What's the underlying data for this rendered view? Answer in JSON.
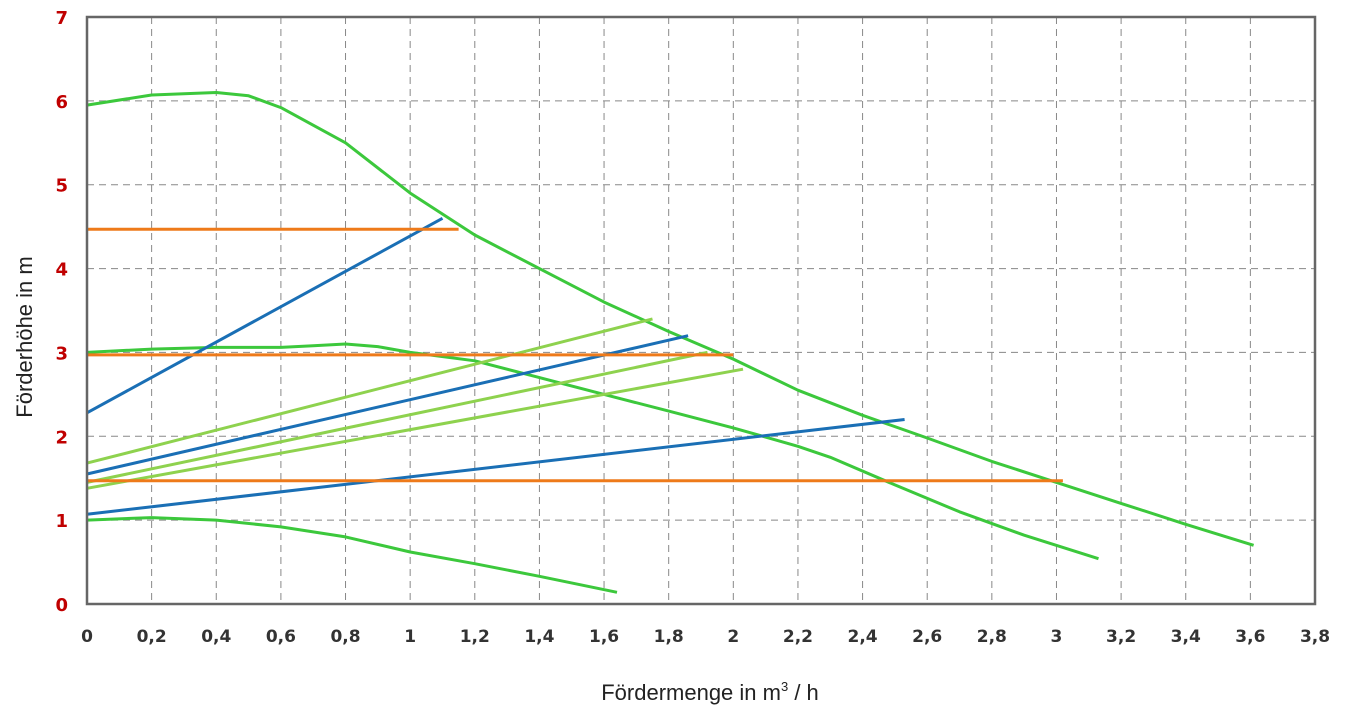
{
  "chart_data": {
    "type": "line",
    "title": "",
    "xlabel_main": "Fördermenge in m",
    "xlabel_sup": "3",
    "xlabel_tail": " / h",
    "ylabel": "Förderhöhe in m",
    "xlim": [
      0,
      3.8
    ],
    "ylim": [
      0,
      7
    ],
    "grid": true,
    "x_ticks": [
      {
        "value": 0,
        "label": "0"
      },
      {
        "value": 0.2,
        "label": "0,2"
      },
      {
        "value": 0.4,
        "label": "0,4"
      },
      {
        "value": 0.6,
        "label": "0,6"
      },
      {
        "value": 0.8,
        "label": "0,8"
      },
      {
        "value": 1,
        "label": "1"
      },
      {
        "value": 1.2,
        "label": "1,2"
      },
      {
        "value": 1.4,
        "label": "1,4"
      },
      {
        "value": 1.6,
        "label": "1,6"
      },
      {
        "value": 1.8,
        "label": "1,8"
      },
      {
        "value": 2,
        "label": "2"
      },
      {
        "value": 2.2,
        "label": "2,2"
      },
      {
        "value": 2.4,
        "label": "2,4"
      },
      {
        "value": 2.6,
        "label": "2,6"
      },
      {
        "value": 2.8,
        "label": "2,8"
      },
      {
        "value": 3,
        "label": "3"
      },
      {
        "value": 3.2,
        "label": "3,2"
      },
      {
        "value": 3.4,
        "label": "3,4"
      },
      {
        "value": 3.6,
        "label": "3,6"
      },
      {
        "value": 3.8,
        "label": "3,8"
      }
    ],
    "y_ticks": [
      {
        "value": 0,
        "label": "0"
      },
      {
        "value": 1,
        "label": "1"
      },
      {
        "value": 2,
        "label": "2"
      },
      {
        "value": 3,
        "label": "3"
      },
      {
        "value": 4,
        "label": "4"
      },
      {
        "value": 5,
        "label": "5"
      },
      {
        "value": 6,
        "label": "6"
      },
      {
        "value": 7,
        "label": "7"
      }
    ],
    "colors": {
      "pump_curve": "#3cc83c",
      "linear_green": "#8ed24e",
      "linear_blue": "#1a6fb5",
      "constant_orange": "#ee7a1a",
      "ytick": "#c00000",
      "xtick": "#333333",
      "frame": "#666666",
      "grid": "#888888"
    },
    "series": [
      {
        "group": "pump_curve",
        "x": [
          0,
          0.2,
          0.4,
          0.5,
          0.6,
          0.8,
          1.0,
          1.2,
          1.4,
          1.6,
          1.8,
          2.0,
          2.2,
          2.4,
          2.6,
          2.8,
          3.0,
          3.2,
          3.4,
          3.61
        ],
        "y": [
          5.95,
          6.07,
          6.1,
          6.06,
          5.92,
          5.5,
          4.9,
          4.4,
          4.0,
          3.6,
          3.25,
          2.92,
          2.55,
          2.25,
          1.98,
          1.7,
          1.45,
          1.2,
          0.95,
          0.7
        ]
      },
      {
        "group": "pump_curve",
        "x": [
          0,
          0.2,
          0.4,
          0.6,
          0.7,
          0.8,
          0.9,
          1.0,
          1.2,
          1.4,
          1.6,
          1.8,
          2.0,
          2.2,
          2.3,
          2.5,
          2.7,
          2.9,
          3.13
        ],
        "y": [
          3.0,
          3.04,
          3.06,
          3.06,
          3.08,
          3.1,
          3.07,
          3.0,
          2.9,
          2.7,
          2.5,
          2.3,
          2.1,
          1.88,
          1.75,
          1.42,
          1.1,
          0.82,
          0.54
        ]
      },
      {
        "group": "pump_curve",
        "x": [
          0,
          0.2,
          0.4,
          0.6,
          0.8,
          1.0,
          1.2,
          1.4,
          1.64
        ],
        "y": [
          1.0,
          1.03,
          1.0,
          0.92,
          0.8,
          0.62,
          0.48,
          0.33,
          0.14
        ]
      },
      {
        "group": "linear_green",
        "x": [
          0,
          1.75
        ],
        "y": [
          1.68,
          3.4
        ]
      },
      {
        "group": "linear_green",
        "x": [
          0,
          1.92
        ],
        "y": [
          1.45,
          3.0
        ]
      },
      {
        "group": "linear_green",
        "x": [
          0,
          2.03
        ],
        "y": [
          1.38,
          2.8
        ]
      },
      {
        "group": "linear_blue",
        "x": [
          0,
          1.1
        ],
        "y": [
          2.28,
          4.6
        ]
      },
      {
        "group": "linear_blue",
        "x": [
          0,
          1.86
        ],
        "y": [
          1.55,
          3.2
        ]
      },
      {
        "group": "linear_blue",
        "x": [
          0,
          2.53
        ],
        "y": [
          1.07,
          2.2
        ]
      },
      {
        "group": "constant_orange",
        "x": [
          0,
          1.15
        ],
        "y": [
          4.47,
          4.47
        ]
      },
      {
        "group": "constant_orange",
        "x": [
          0,
          2.0
        ],
        "y": [
          2.97,
          2.97
        ]
      },
      {
        "group": "constant_orange",
        "x": [
          0,
          3.02
        ],
        "y": [
          1.47,
          1.47
        ]
      }
    ]
  }
}
